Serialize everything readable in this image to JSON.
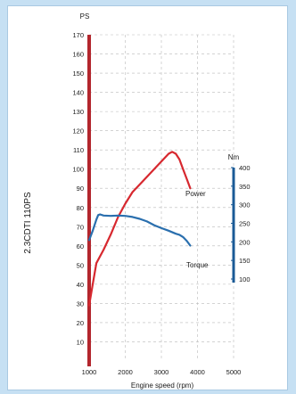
{
  "chart_data": {
    "type": "line",
    "title": "",
    "side_label": "2.3CDTI 110PS",
    "xlabel": "Engine speed (rpm)",
    "xlim": [
      1000,
      5000
    ],
    "x_ticks": [
      "1000",
      "2000",
      "3000",
      "4000",
      "5000"
    ],
    "left_axis": {
      "label": "PS",
      "ylim": [
        0,
        170
      ],
      "ticks": [
        "10",
        "20",
        "30",
        "40",
        "50",
        "60",
        "70",
        "80",
        "90",
        "100",
        "110",
        "120",
        "130",
        "140",
        "150",
        "160",
        "170"
      ],
      "color": "#b3262d"
    },
    "right_axis": {
      "label": "Nm",
      "ylim": [
        100,
        400
      ],
      "ticks": [
        "100",
        "150",
        "200",
        "250",
        "300",
        "350",
        "400"
      ],
      "color": "#1a5a96"
    },
    "grid": true,
    "series": [
      {
        "name": "Power",
        "axis": "left",
        "color": "#d7282f",
        "x": [
          1000,
          1100,
          1200,
          1400,
          1600,
          1800,
          2000,
          2200,
          2500,
          2800,
          3000,
          3200,
          3300,
          3400,
          3500,
          3600,
          3700,
          3800
        ],
        "y": [
          29,
          40,
          51,
          58,
          66,
          75,
          82,
          88,
          94,
          100,
          104,
          108,
          109,
          108,
          105,
          100,
          95,
          90
        ]
      },
      {
        "name": "Torque",
        "axis": "right",
        "color": "#2a6fae",
        "x": [
          1000,
          1100,
          1200,
          1250,
          1300,
          1400,
          1600,
          1800,
          2000,
          2200,
          2400,
          2600,
          2800,
          3000,
          3200,
          3400,
          3500,
          3600,
          3700,
          3800
        ],
        "y": [
          205,
          230,
          260,
          272,
          274,
          271,
          270,
          271,
          270,
          267,
          262,
          255,
          245,
          237,
          230,
          222,
          219,
          213,
          203,
          190
        ]
      }
    ]
  }
}
